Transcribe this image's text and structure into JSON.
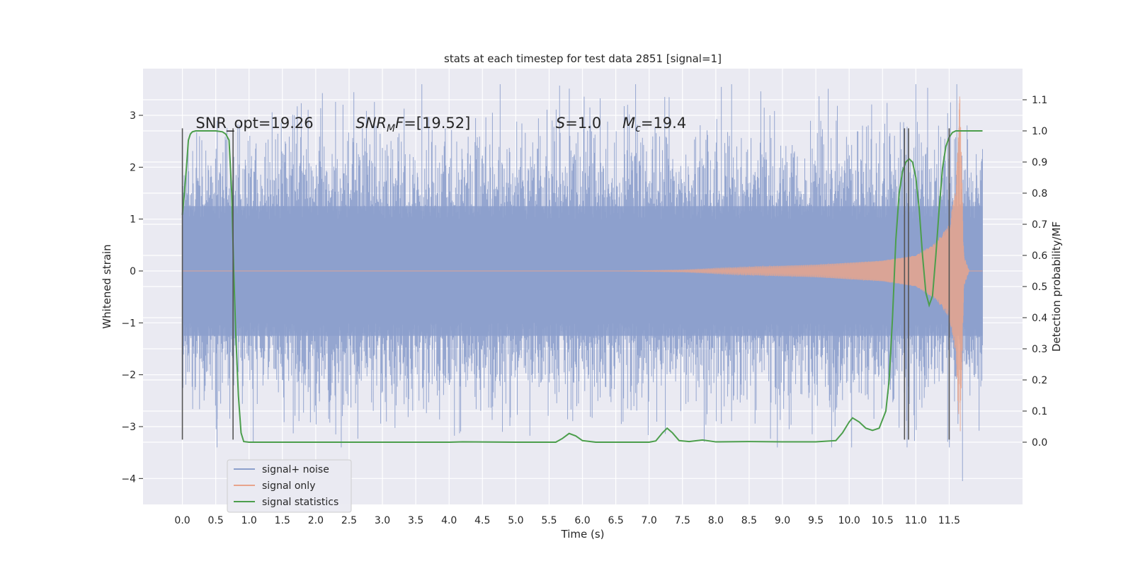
{
  "chart_data": {
    "type": "line",
    "title": "stats at each timestep for test data 2851 [signal=1]",
    "xlabel": "Time (s)",
    "ylabel_left": "Whitened strain",
    "ylabel_right": "Detection probability/MF",
    "xlim": [
      -0.59,
      12.6
    ],
    "ylim_left": [
      -4.5,
      3.9
    ],
    "ylim_right": [
      -0.2,
      1.2
    ],
    "x_ticks": [
      0.0,
      0.5,
      1.0,
      1.5,
      2.0,
      2.5,
      3.0,
      3.5,
      4.0,
      4.5,
      5.0,
      5.5,
      6.0,
      6.5,
      7.0,
      7.5,
      8.0,
      8.5,
      9.0,
      9.5,
      10.0,
      10.5,
      11.0,
      11.5
    ],
    "x_tick_labels": [
      "0.0",
      "0.5",
      "1.0",
      "1.5",
      "2.0",
      "2.5",
      "3.0",
      "3.5",
      "4.0",
      "4.5",
      "5.0",
      "5.5",
      "6.0",
      "6.5",
      "7.0",
      "7.5",
      "8.0",
      "8.5",
      "9.0",
      "9.5",
      "10.0",
      "10.5",
      "11.0",
      "11.5"
    ],
    "y_left_ticks": [
      3,
      2,
      1,
      0,
      -1,
      -2,
      -3,
      -4
    ],
    "y_left_tick_labels": [
      "3",
      "2",
      "1",
      "0",
      "−1",
      "−2",
      "−3",
      "−4"
    ],
    "y_right_ticks": [
      1.1,
      1.0,
      0.9,
      0.8,
      0.7,
      0.6,
      0.5,
      0.4,
      0.3,
      0.2,
      0.1,
      0.0
    ],
    "y_right_tick_labels": [
      "1.1",
      "1.0",
      "0.9",
      "0.8",
      "0.7",
      "0.6",
      "0.5",
      "0.4",
      "0.3",
      "0.2",
      "0.1",
      "0.0"
    ],
    "grid": true,
    "legend_position": "lower-left",
    "annotations": [
      {
        "text": "SNR_opt=19.26",
        "x": 0.2,
        "y": 2.85
      },
      {
        "text": "SNR_MF=[19.52]",
        "x": 2.6,
        "y": 2.85
      },
      {
        "text": "S=1.0",
        "x": 5.6,
        "y": 2.85
      },
      {
        "text": "M_c=19.4",
        "x": 6.6,
        "y": 2.85
      }
    ],
    "vertical_markers": [
      {
        "x": 0.0,
        "ymin": -3.25,
        "ymax": 2.75
      },
      {
        "x": 0.76,
        "ymin": -3.25,
        "ymax": 2.75
      },
      {
        "x": 10.83,
        "ymin": -3.25,
        "ymax": 2.75
      },
      {
        "x": 10.89,
        "ymin": -3.25,
        "ymax": 2.75
      },
      {
        "x": 11.5,
        "ymin": -3.25,
        "ymax": 2.75
      }
    ],
    "series": [
      {
        "name": "signal+ noise",
        "color": "#8c9fcc",
        "axis": "left",
        "x_range": [
          0.0,
          12.0
        ],
        "band": {
          "typical_range": [
            -1.25,
            1.25
          ],
          "peak_range": [
            -3.4,
            3.6
          ]
        },
        "peaks": [
          [
            0.52,
            -3.4
          ],
          [
            2.3,
            -3.15
          ],
          [
            4.65,
            3.05
          ],
          [
            4.8,
            -3.1
          ],
          [
            7.3,
            3.35
          ],
          [
            11.0,
            3.6
          ],
          [
            11.7,
            -4.05
          ],
          [
            10.2,
            2.8
          ],
          [
            9.1,
            -3.05
          ]
        ]
      },
      {
        "name": "signal only",
        "color": "#e8a48c",
        "axis": "left",
        "x_range": [
          0.0,
          12.0
        ],
        "envelope": [
          [
            0.0,
            0.0
          ],
          [
            6.5,
            0.0
          ],
          [
            7.5,
            0.02
          ],
          [
            8.5,
            0.08
          ],
          [
            9.5,
            0.12
          ],
          [
            10.5,
            0.2
          ],
          [
            11.0,
            0.3
          ],
          [
            11.3,
            0.55
          ],
          [
            11.5,
            0.9
          ],
          [
            11.6,
            1.6
          ],
          [
            11.66,
            3.45
          ],
          [
            11.72,
            0.3
          ],
          [
            11.8,
            0.0
          ],
          [
            12.0,
            0.0
          ]
        ]
      },
      {
        "name": "signal statistics",
        "color": "#4c9e4c",
        "axis": "right",
        "x": [
          0.0,
          0.03,
          0.06,
          0.09,
          0.12,
          0.15,
          0.2,
          0.3,
          0.4,
          0.5,
          0.6,
          0.65,
          0.7,
          0.74,
          0.77,
          0.8,
          0.84,
          0.88,
          0.92,
          1.0,
          2.0,
          3.0,
          4.0,
          4.2,
          5.0,
          5.6,
          5.7,
          5.8,
          5.9,
          6.0,
          6.2,
          7.0,
          7.1,
          7.2,
          7.27,
          7.35,
          7.45,
          7.6,
          7.8,
          8.0,
          8.5,
          9.0,
          9.5,
          9.8,
          9.9,
          10.0,
          10.05,
          10.15,
          10.25,
          10.35,
          10.45,
          10.55,
          10.6,
          10.65,
          10.7,
          10.75,
          10.8,
          10.85,
          10.9,
          10.95,
          11.0,
          11.05,
          11.1,
          11.15,
          11.2,
          11.25,
          11.3,
          11.35,
          11.4,
          11.45,
          11.5,
          11.55,
          11.6,
          11.65,
          11.7,
          11.8,
          11.9,
          12.0
        ],
        "y": [
          0.73,
          0.8,
          0.88,
          0.97,
          0.99,
          0.997,
          1.0,
          1.0,
          1.0,
          1.0,
          0.997,
          0.99,
          0.97,
          0.8,
          0.55,
          0.35,
          0.15,
          0.03,
          0.002,
          0.0,
          0.0,
          0.0,
          0.0,
          0.001,
          0.0,
          0.0,
          0.012,
          0.028,
          0.02,
          0.005,
          0.0,
          0.0,
          0.004,
          0.03,
          0.045,
          0.03,
          0.005,
          0.002,
          0.007,
          0.001,
          0.002,
          0.001,
          0.001,
          0.005,
          0.03,
          0.065,
          0.078,
          0.065,
          0.045,
          0.038,
          0.045,
          0.1,
          0.2,
          0.4,
          0.65,
          0.8,
          0.87,
          0.9,
          0.91,
          0.9,
          0.85,
          0.75,
          0.6,
          0.48,
          0.44,
          0.47,
          0.6,
          0.75,
          0.88,
          0.95,
          0.98,
          0.995,
          1.0,
          1.0,
          1.0,
          1.0,
          1.0,
          1.0
        ]
      }
    ]
  }
}
